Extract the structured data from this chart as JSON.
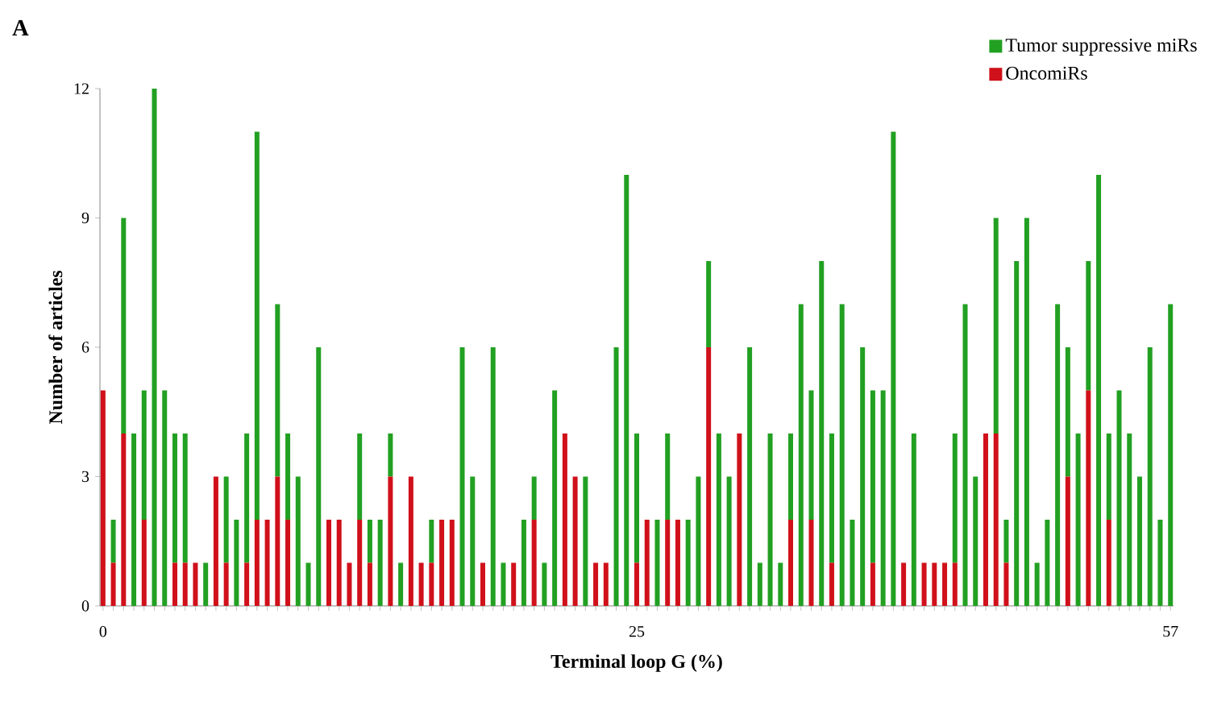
{
  "chart_data": {
    "type": "bar",
    "stacked": true,
    "annotations": [
      "A"
    ],
    "xlabel": "Terminal loop G (%)",
    "ylabel": "Number of articles",
    "categories": [
      "0",
      null,
      null,
      null,
      null,
      null,
      null,
      null,
      null,
      null,
      null,
      null,
      null,
      null,
      null,
      null,
      null,
      null,
      null,
      null,
      null,
      null,
      null,
      null,
      null,
      null,
      null,
      null,
      null,
      null,
      null,
      null,
      null,
      null,
      null,
      null,
      null,
      null,
      null,
      null,
      null,
      null,
      null,
      null,
      null,
      null,
      null,
      null,
      null,
      null,
      null,
      null,
      "25",
      null,
      null,
      null,
      null,
      null,
      null,
      null,
      null,
      null,
      null,
      null,
      null,
      null,
      null,
      null,
      null,
      null,
      null,
      null,
      null,
      null,
      null,
      null,
      null,
      null,
      null,
      null,
      null,
      null,
      null,
      null,
      null,
      null,
      null,
      null,
      null,
      null,
      null,
      null,
      null,
      null,
      null,
      null,
      null,
      null,
      null,
      null,
      null,
      null,
      null,
      null,
      "57"
    ],
    "series": [
      {
        "name": "OncomiRs",
        "color": "#d0101a",
        "values": [
          5,
          1,
          4,
          0,
          2,
          0,
          0,
          1,
          1,
          1,
          0,
          3,
          1,
          0,
          1,
          2,
          2,
          3,
          2,
          0,
          0,
          0,
          2,
          2,
          1,
          2,
          1,
          0,
          3,
          0,
          3,
          1,
          1,
          2,
          2,
          0,
          0,
          1,
          0,
          0,
          1,
          0,
          2,
          0,
          0,
          4,
          3,
          0,
          1,
          1,
          0,
          0,
          1,
          2,
          0,
          2,
          2,
          0,
          0,
          6,
          0,
          0,
          4,
          0,
          0,
          0,
          0,
          2,
          0,
          2,
          0,
          1,
          0,
          0,
          0,
          1,
          0,
          0,
          1,
          0,
          1,
          1,
          1,
          1,
          0,
          0,
          4,
          4,
          1,
          0,
          0,
          0,
          0,
          0,
          3,
          0,
          5,
          0,
          2,
          0,
          0,
          0,
          0,
          0,
          0
        ]
      },
      {
        "name": "Tumor suppressive miRs",
        "color": "#22a022",
        "values": [
          0,
          1,
          5,
          4,
          3,
          12,
          5,
          3,
          3,
          0,
          1,
          0,
          2,
          2,
          3,
          9,
          0,
          4,
          2,
          3,
          1,
          6,
          0,
          0,
          0,
          2,
          1,
          2,
          1,
          1,
          0,
          0,
          1,
          0,
          0,
          6,
          3,
          0,
          6,
          1,
          0,
          2,
          1,
          1,
          5,
          0,
          0,
          3,
          0,
          0,
          6,
          10,
          3,
          0,
          2,
          2,
          0,
          2,
          3,
          2,
          4,
          3,
          0,
          6,
          1,
          4,
          1,
          2,
          7,
          3,
          8,
          3,
          7,
          2,
          6,
          4,
          5,
          11,
          0,
          4,
          0,
          0,
          0,
          3,
          7,
          3,
          0,
          5,
          1,
          8,
          9,
          1,
          2,
          7,
          3,
          4,
          3,
          10,
          2,
          5,
          4,
          3,
          6,
          2,
          7
        ]
      }
    ],
    "ylim": [
      0,
      12
    ],
    "yticks": [
      0,
      3,
      6,
      9,
      12
    ],
    "legend": "top right",
    "grid": false
  }
}
